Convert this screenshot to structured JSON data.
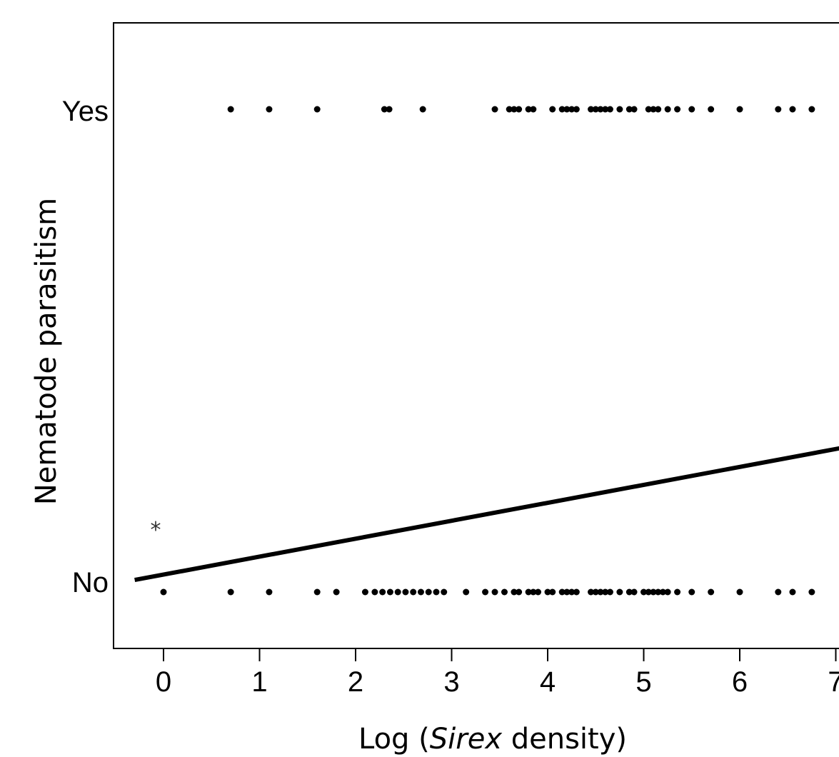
{
  "chart_data": {
    "type": "scatter",
    "xlabel_prefix": "Log (",
    "xlabel_italic": "Sirex",
    "xlabel_suffix": " density)",
    "ylabel": "Nematode parasitism",
    "x_ticks": [
      0,
      1,
      2,
      3,
      4,
      5,
      6,
      7
    ],
    "xlim": [
      -0.5,
      7.1
    ],
    "y_categories": [
      "No",
      "Yes"
    ],
    "annotation": "*",
    "series": [
      {
        "y": "Yes",
        "x": [
          0.7,
          1.1,
          1.6,
          2.3,
          2.35,
          2.7,
          3.45,
          3.6,
          3.65,
          3.7,
          3.8,
          3.85,
          4.05,
          4.15,
          4.2,
          4.25,
          4.3,
          4.45,
          4.5,
          4.55,
          4.6,
          4.65,
          4.75,
          4.85,
          4.9,
          5.05,
          5.1,
          5.15,
          5.25,
          5.35,
          5.5,
          5.7,
          6.0,
          6.4,
          6.55,
          6.75
        ]
      },
      {
        "y": "No",
        "x": [
          0.0,
          0.7,
          1.1,
          1.6,
          1.8,
          2.1,
          2.2,
          2.28,
          2.36,
          2.44,
          2.52,
          2.6,
          2.68,
          2.76,
          2.84,
          2.92,
          3.15,
          3.35,
          3.45,
          3.55,
          3.65,
          3.7,
          3.8,
          3.85,
          3.9,
          4.0,
          4.05,
          4.15,
          4.2,
          4.25,
          4.3,
          4.45,
          4.5,
          4.55,
          4.6,
          4.65,
          4.75,
          4.85,
          4.9,
          5.0,
          5.05,
          5.1,
          5.15,
          5.2,
          5.25,
          5.35,
          5.5,
          5.7,
          6.0,
          6.4,
          6.55,
          6.75
        ]
      }
    ],
    "fit_line": {
      "x": [
        -0.3,
        7.1
      ],
      "p": [
        0.025,
        0.3
      ]
    }
  }
}
